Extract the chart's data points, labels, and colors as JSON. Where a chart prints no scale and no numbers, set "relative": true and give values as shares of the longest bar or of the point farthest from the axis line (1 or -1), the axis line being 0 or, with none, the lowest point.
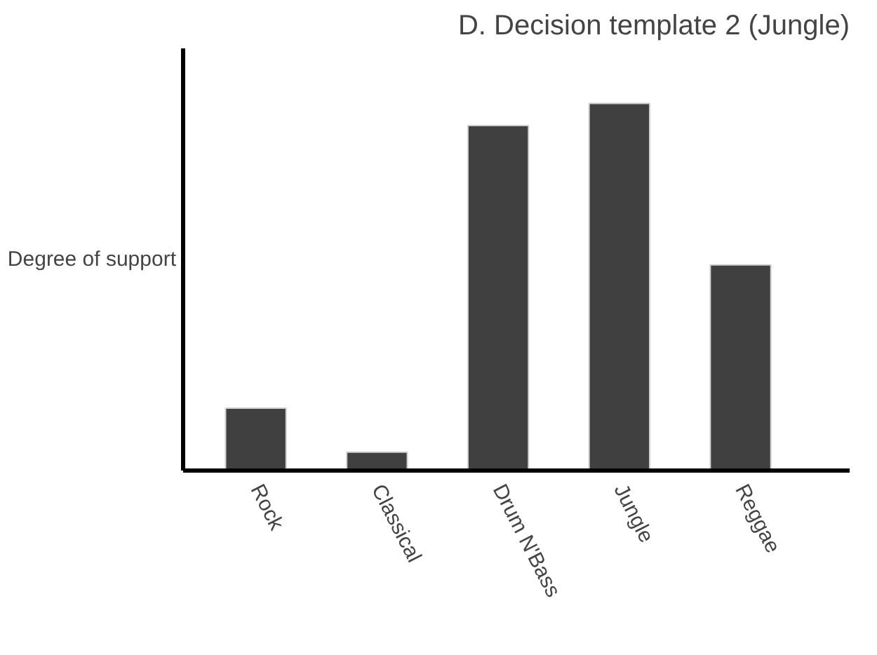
{
  "chart_data": {
    "type": "bar",
    "relative": true,
    "title": "D. Decision template 2 (Jungle)",
    "ylabel": "Degree of support",
    "categories": [
      "Rock",
      "Classical",
      "Drum N'Bass",
      "Jungle",
      "Reggae"
    ],
    "values": [
      0.17,
      0.05,
      0.94,
      1,
      0.56
    ],
    "color": "#404040",
    "grid": false
  }
}
